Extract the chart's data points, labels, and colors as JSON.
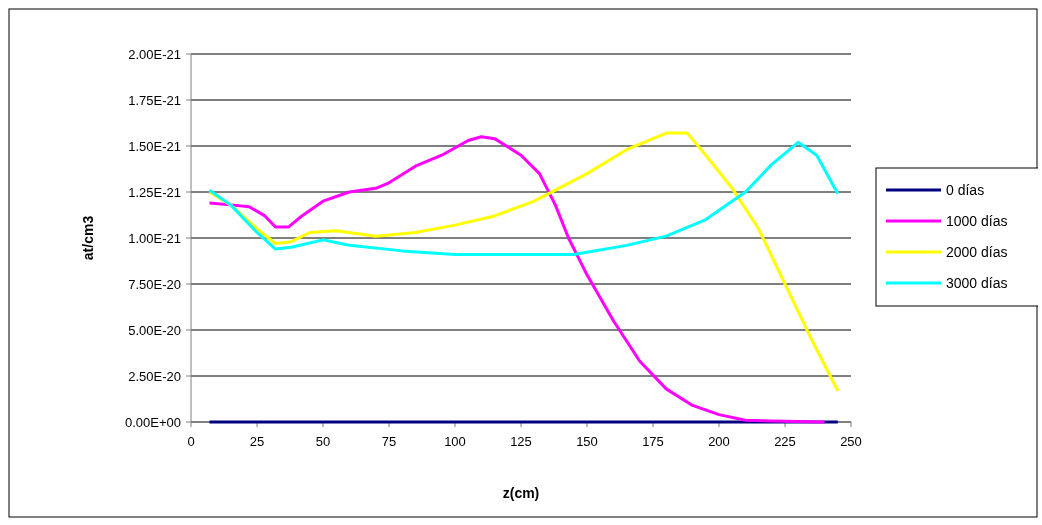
{
  "chart_data": {
    "type": "line",
    "xlabel": "z(cm)",
    "ylabel": "at/cm3",
    "xlim": [
      0,
      250
    ],
    "xticks": [
      0,
      25,
      50,
      75,
      100,
      125,
      150,
      175,
      200,
      225,
      250
    ],
    "ylim": [
      0,
      2e-21
    ],
    "yticks": [
      {
        "value": 0,
        "label": "0.00E+00"
      },
      {
        "value": 2.5e-22,
        "label": "2.50E-20"
      },
      {
        "value": 5e-22,
        "label": "5.00E-20"
      },
      {
        "value": 7.5e-22,
        "label": "7.50E-20"
      },
      {
        "value": 1e-21,
        "label": "1.00E-21"
      },
      {
        "value": 1.25e-21,
        "label": "1.25E-21"
      },
      {
        "value": 1.5e-21,
        "label": "1.50E-21"
      },
      {
        "value": 1.75e-21,
        "label": "1.75E-21"
      },
      {
        "value": 2e-21,
        "label": "2.00E-21"
      }
    ],
    "grid": "y",
    "legend": "right",
    "marker": "none",
    "line_style": "solid",
    "series": [
      {
        "name": "0 días",
        "color": "#000080",
        "x": [
          7,
          245
        ],
        "values": [
          0,
          0
        ]
      },
      {
        "name": "1000 días",
        "color": "#ff00ff",
        "x": [
          7,
          15,
          22,
          28,
          32,
          37,
          42,
          50,
          60,
          70,
          75,
          85,
          95,
          105,
          110,
          115,
          125,
          132,
          138,
          143,
          150,
          160,
          170,
          180,
          190,
          200,
          210,
          220,
          240
        ],
        "values": [
          1.19e-21,
          1.18e-21,
          1.17e-21,
          1.12e-21,
          1.06e-21,
          1.06e-21,
          1.12e-21,
          1.2e-21,
          1.25e-21,
          1.27e-21,
          1.3e-21,
          1.39e-21,
          1.45e-21,
          1.53e-21,
          1.55e-21,
          1.54e-21,
          1.45e-21,
          1.35e-21,
          1.18e-21,
          1e-21,
          8e-22,
          5.5e-22,
          3.3e-22,
          1.8e-22,
          9e-23,
          4e-23,
          1e-23,
          5e-24,
          0
        ]
      },
      {
        "name": "2000 días",
        "color": "#ffff00",
        "x": [
          7,
          15,
          25,
          32,
          38,
          45,
          55,
          70,
          85,
          100,
          115,
          130,
          150,
          165,
          180,
          188,
          195,
          205,
          215,
          225,
          235,
          245
        ],
        "values": [
          1.25e-21,
          1.18e-21,
          1.05e-21,
          9.7e-22,
          9.8e-22,
          1.03e-21,
          1.04e-21,
          1.01e-21,
          1.03e-21,
          1.07e-21,
          1.12e-21,
          1.2e-21,
          1.35e-21,
          1.48e-21,
          1.57e-21,
          1.57e-21,
          1.45e-21,
          1.27e-21,
          1.05e-21,
          7.5e-22,
          4.5e-22,
          1.7e-22
        ]
      },
      {
        "name": "3000 días",
        "color": "#00ffff",
        "x": [
          7,
          15,
          25,
          32,
          38,
          50,
          60,
          80,
          100,
          120,
          145,
          165,
          180,
          195,
          210,
          220,
          230,
          237,
          245
        ],
        "values": [
          1.26e-21,
          1.18e-21,
          1.03e-21,
          9.4e-22,
          9.5e-22,
          9.9e-22,
          9.6e-22,
          9.3e-22,
          9.1e-22,
          9.1e-22,
          9.1e-22,
          9.6e-22,
          1.01e-21,
          1.1e-21,
          1.25e-21,
          1.4e-21,
          1.52e-21,
          1.45e-21,
          1.24e-21
        ]
      }
    ]
  }
}
